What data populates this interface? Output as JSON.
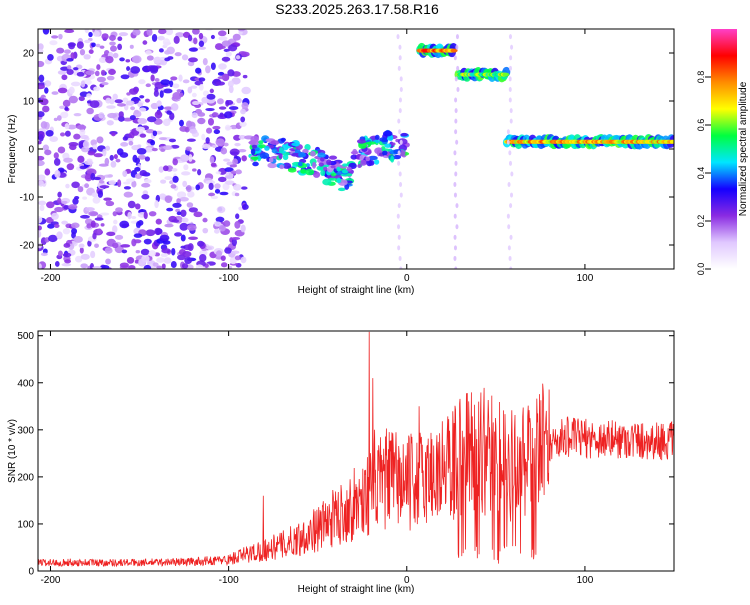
{
  "title": "S233.2025.263.17.58.R16",
  "chart_data": [
    {
      "type": "heatmap",
      "xlabel": "Height of straight line (km)",
      "ylabel": "Frequency (Hz)",
      "xlim": [
        -207,
        150
      ],
      "ylim": [
        -25,
        25
      ],
      "xticks": [
        -200,
        -100,
        0,
        100
      ],
      "yticks": [
        -20,
        -10,
        0,
        10,
        20
      ],
      "colorbar": {
        "label": "Normalized spectral amplitude",
        "range": [
          0,
          1
        ],
        "ticks": [
          "0.0",
          "0.2",
          "0.4",
          "0.6",
          "0.8"
        ],
        "colors": [
          "#ffffff",
          "#e0c8ff",
          "#8a2be2",
          "#1400ff",
          "#00e6ff",
          "#00ff40",
          "#ffff00",
          "#ff8c00",
          "#ff0000",
          "#ff40c8"
        ]
      },
      "features": [
        {
          "x_range": [
            -207,
            -90
          ],
          "freq_range": [
            -25,
            25
          ],
          "amplitude": 0.15,
          "kind": "noise"
        },
        {
          "x": [
            -90,
            -70,
            -50,
            -35,
            -25,
            -15,
            0
          ],
          "freq": [
            0,
            -1,
            -3,
            -6,
            0,
            0,
            1
          ],
          "amplitude": 0.35,
          "kind": "band"
        },
        {
          "x_range": [
            7,
            27
          ],
          "freq": 20.5,
          "amplitude": 0.9,
          "kind": "line"
        },
        {
          "x_range": [
            29,
            56
          ],
          "freq": 15.5,
          "amplitude": 0.7,
          "kind": "line"
        },
        {
          "x_range": [
            56,
            150
          ],
          "freq": 1.5,
          "amplitude": 0.85,
          "kind": "line"
        }
      ]
    },
    {
      "type": "line",
      "xlabel": "Height of straight line (km)",
      "ylabel": "SNR (10 * v/v)",
      "xlim": [
        -207,
        150
      ],
      "ylim": [
        0,
        510
      ],
      "xticks": [
        -200,
        -100,
        0,
        100
      ],
      "yticks": [
        0,
        100,
        200,
        300,
        400,
        500
      ],
      "color": "#ee2222",
      "envelope": {
        "x": [
          -207,
          -150,
          -120,
          -100,
          -90,
          -80,
          -70,
          -60,
          -50,
          -40,
          -30,
          -20,
          -10,
          0,
          10,
          20,
          30,
          40,
          50,
          60,
          70,
          80,
          90,
          100,
          110,
          120,
          130,
          140,
          150
        ],
        "y": [
          18,
          18,
          20,
          24,
          35,
          45,
          55,
          70,
          90,
          115,
          140,
          170,
          200,
          185,
          200,
          215,
          240,
          262,
          238,
          222,
          232,
          272,
          285,
          282,
          280,
          280,
          278,
          277,
          276
        ]
      },
      "spikes": [
        {
          "x": -80.5,
          "y": 160
        },
        {
          "x": -21,
          "y": 508
        },
        {
          "x": -19,
          "y": 410
        },
        {
          "x": -18,
          "y": 300
        },
        {
          "x": 7,
          "y": 350
        },
        {
          "x": 35,
          "y": 320
        },
        {
          "x": 46,
          "y": 325
        },
        {
          "x": 78,
          "y": 325
        }
      ]
    }
  ]
}
